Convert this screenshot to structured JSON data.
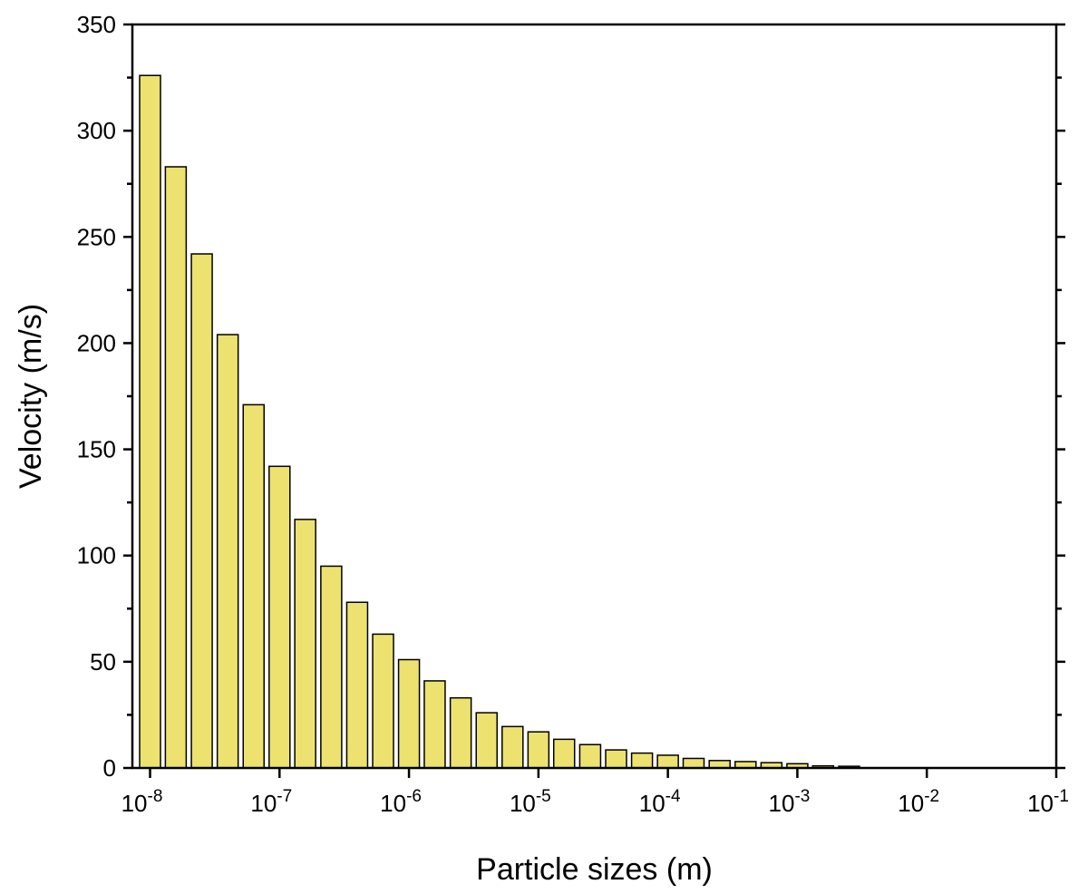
{
  "chart_data": {
    "type": "bar",
    "title": "",
    "xlabel": "Particle sizes (m)",
    "ylabel": "Velocity (m/s)",
    "x_scale": "log",
    "xlim": [
      7.3e-09,
      0.1
    ],
    "ylim": [
      0,
      350
    ],
    "y_ticks": [
      0,
      50,
      100,
      150,
      200,
      250,
      300,
      350
    ],
    "x_ticks": [
      {
        "value": 1e-08,
        "mantissa": "10",
        "exponent": "-8"
      },
      {
        "value": 1e-07,
        "mantissa": "10",
        "exponent": "-7"
      },
      {
        "value": 1e-06,
        "mantissa": "10",
        "exponent": "-6"
      },
      {
        "value": 1e-05,
        "mantissa": "10",
        "exponent": "-5"
      },
      {
        "value": 0.0001,
        "mantissa": "10",
        "exponent": "-4"
      },
      {
        "value": 0.001,
        "mantissa": "10",
        "exponent": "-3"
      },
      {
        "value": 0.01,
        "mantissa": "10",
        "exponent": "-2"
      },
      {
        "value": 0.1,
        "mantissa": "10",
        "exponent": "-1"
      }
    ],
    "bar_color": "#ede26f",
    "grid": false,
    "x": [
      1e-08,
      1.58e-08,
      2.51e-08,
      3.98e-08,
      6.31e-08,
      1e-07,
      1.58e-07,
      2.51e-07,
      3.98e-07,
      6.31e-07,
      1e-06,
      1.58e-06,
      2.51e-06,
      3.98e-06,
      6.31e-06,
      1e-05,
      1.58e-05,
      2.51e-05,
      3.98e-05,
      6.31e-05,
      0.0001,
      0.000158,
      0.000251,
      0.000398,
      0.000631,
      0.001,
      0.00158,
      0.00251
    ],
    "values": [
      326,
      283,
      242,
      204,
      171,
      142,
      117,
      95,
      78,
      63,
      51,
      41,
      33,
      26,
      19.5,
      17,
      13.5,
      11,
      8.5,
      7,
      6,
      4.5,
      3.5,
      3,
      2.5,
      2,
      1,
      0.8
    ]
  }
}
